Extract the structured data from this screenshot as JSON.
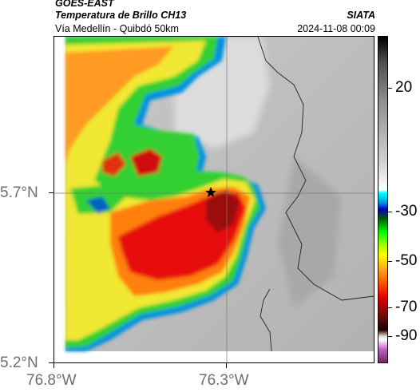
{
  "header": {
    "satellite": "GOES-EAST",
    "product": "Temperatura de Brillo CH13",
    "region": "Vía Medellín - Quibdó 50km",
    "agency": "SIATA",
    "timestamp": "2024-11-08 00:09"
  },
  "map": {
    "lat_labels": [
      "5.7°N",
      "5.2°N"
    ],
    "lon_labels": [
      "76.8°W",
      "76.3°W"
    ],
    "marker_icon": "star-icon",
    "background_color": "#d0d0d0"
  },
  "colorbar": {
    "tick_labels": [
      "20",
      "-30",
      "-50",
      "-70",
      "-90"
    ],
    "colors": [
      "#6b2a6b",
      "#c060c0",
      "#ffffff",
      "#8a1010",
      "#e00000",
      "#ff8000",
      "#ffff00",
      "#00ff00",
      "#006000",
      "#0000c0",
      "#00ffff",
      "#ffffff",
      "#000000"
    ]
  }
}
